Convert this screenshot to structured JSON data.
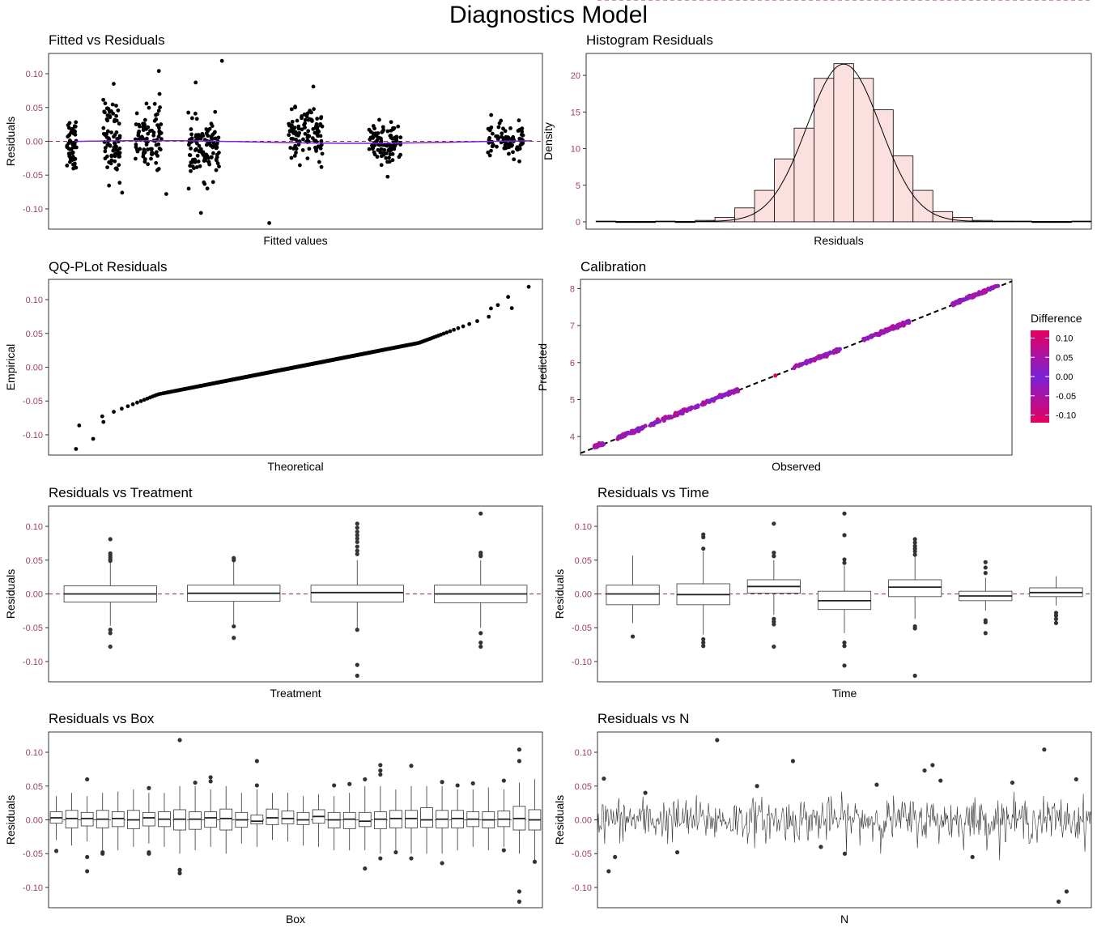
{
  "title": "Diagnostics Model",
  "colors": {
    "tick_label": "#a0405a",
    "ref_line": "#9b2d4d",
    "smooth_line": "#7a22d6",
    "hist_fill": "#fbe0df",
    "legend_low": "#e6005e",
    "legend_mid": "#7a22d6"
  },
  "chart_data": [
    {
      "id": "fitted",
      "type": "scatter",
      "title": "Fitted vs Residuals",
      "xlabel": "Fitted values",
      "ylabel": "Residuals",
      "xlim": [
        3.5,
        8.2
      ],
      "ylim": [
        -0.13,
        0.13
      ],
      "yticks": [
        "-0.10",
        "-0.05",
        "0.00",
        "0.05",
        "0.10"
      ],
      "ytick_values": [
        -0.1,
        -0.05,
        0,
        0.05,
        0.1
      ],
      "hline": 0,
      "clusters": [
        {
          "center": 3.72,
          "width": 0.09,
          "n": 50,
          "mean": 0.0,
          "sd": 0.022
        },
        {
          "center": 4.1,
          "width": 0.16,
          "n": 80,
          "mean": 0.002,
          "sd": 0.028
        },
        {
          "center": 4.45,
          "width": 0.25,
          "n": 90,
          "mean": 0.008,
          "sd": 0.022
        },
        {
          "center": 4.98,
          "width": 0.3,
          "n": 110,
          "mean": -0.012,
          "sd": 0.02
        },
        {
          "center": 5.95,
          "width": 0.33,
          "n": 110,
          "mean": 0.008,
          "sd": 0.018
        },
        {
          "center": 6.7,
          "width": 0.3,
          "n": 100,
          "mean": -0.004,
          "sd": 0.017
        },
        {
          "center": 7.85,
          "width": 0.35,
          "n": 80,
          "mean": 0.002,
          "sd": 0.012
        }
      ],
      "outliers": [
        {
          "x": 4.55,
          "y": 0.104
        },
        {
          "x": 5.15,
          "y": 0.119
        },
        {
          "x": 4.9,
          "y": 0.087
        },
        {
          "x": 4.12,
          "y": 0.085
        },
        {
          "x": 6.02,
          "y": 0.081
        },
        {
          "x": 5.6,
          "y": -0.121
        },
        {
          "x": 4.95,
          "y": -0.106
        },
        {
          "x": 4.62,
          "y": -0.078
        },
        {
          "x": 4.2,
          "y": -0.076
        }
      ]
    },
    {
      "id": "hist",
      "type": "histogram",
      "title": "Histogram Residuals",
      "xlabel": "Residuals",
      "ylabel": "Density",
      "xlim": [
        -0.13,
        0.125
      ],
      "ylim": [
        -1,
        23
      ],
      "yticks": [
        "0",
        "5",
        "10",
        "15",
        "20"
      ],
      "ytick_values": [
        0,
        5,
        10,
        15,
        20
      ],
      "bin_edges": [
        -0.125,
        -0.115,
        -0.105,
        -0.095,
        -0.085,
        -0.075,
        -0.065,
        -0.055,
        -0.045,
        -0.035,
        -0.025,
        -0.015,
        -0.005,
        0.005,
        0.015,
        0.025,
        0.035,
        0.045,
        0.055,
        0.065,
        0.075,
        0.085,
        0.095,
        0.105,
        0.115,
        0.125
      ],
      "densities": [
        0.1,
        0.0,
        0.0,
        0.1,
        0.0,
        0.2,
        0.6,
        1.9,
        4.3,
        8.6,
        12.8,
        19.6,
        21.6,
        19.6,
        15.3,
        9.0,
        4.3,
        1.4,
        0.6,
        0.2,
        0.1,
        0.1,
        0.0,
        0.0,
        0.1
      ]
    },
    {
      "id": "qq",
      "type": "scatter",
      "title": "QQ-PLot Residuals",
      "xlabel": "Theoretical",
      "ylabel": "Empirical",
      "xlim": [
        -3.6,
        3.6
      ],
      "ylim": [
        -0.13,
        0.13
      ],
      "yticks": [
        "-0.10",
        "-0.05",
        "0.00",
        "0.05",
        "0.10"
      ],
      "ytick_values": [
        -0.1,
        -0.05,
        0,
        0.05,
        0.1
      ],
      "n": 620,
      "sd": 0.02
    },
    {
      "id": "calibration",
      "type": "scatter",
      "title": "Calibration",
      "xlabel": "Observed",
      "ylabel": "Predicted",
      "xlim": [
        3.55,
        8.2
      ],
      "ylim": [
        3.5,
        8.25
      ],
      "yticks": [
        "4",
        "5",
        "6",
        "7",
        "8"
      ],
      "ytick_values": [
        4,
        5,
        6,
        7,
        8
      ],
      "diagonal": true,
      "legend": {
        "title": "Difference",
        "labels": [
          "0.10",
          "0.05",
          "0.00",
          "-0.05",
          "-0.10"
        ],
        "values": [
          0.1,
          0.05,
          0,
          -0.05,
          -0.1
        ]
      },
      "segments": [
        {
          "from": 3.7,
          "to": 3.8,
          "n": 30
        },
        {
          "from": 3.95,
          "to": 4.25,
          "n": 60
        },
        {
          "from": 4.3,
          "to": 4.75,
          "n": 70
        },
        {
          "from": 4.75,
          "to": 5.25,
          "n": 80
        },
        {
          "from": 5.85,
          "to": 6.35,
          "n": 80
        },
        {
          "from": 6.6,
          "to": 7.1,
          "n": 80
        },
        {
          "from": 7.55,
          "to": 8.05,
          "n": 80
        }
      ]
    },
    {
      "id": "treatment",
      "type": "box",
      "title": "Residuals vs Treatment",
      "xlabel": "Treatment",
      "ylabel": "Residuals",
      "ylim": [
        -0.13,
        0.13
      ],
      "yticks": [
        "-0.10",
        "-0.05",
        "0.00",
        "0.05",
        "0.10"
      ],
      "ytick_values": [
        -0.1,
        -0.05,
        0,
        0.05,
        0.1
      ],
      "hline": 0,
      "boxes": [
        {
          "q1": -0.012,
          "med": 0.0,
          "q3": 0.012,
          "lo": -0.047,
          "hi": 0.047,
          "out": [
            0.081,
            0.06,
            0.057,
            0.054,
            0.051,
            0.049,
            -0.053,
            -0.058,
            -0.078
          ]
        },
        {
          "q1": -0.011,
          "med": 0.001,
          "q3": 0.013,
          "lo": -0.045,
          "hi": 0.05,
          "out": [
            0.053,
            0.05,
            -0.048,
            -0.065
          ]
        },
        {
          "q1": -0.012,
          "med": 0.002,
          "q3": 0.013,
          "lo": -0.05,
          "hi": 0.05,
          "out": [
            0.104,
            0.098,
            0.092,
            0.087,
            0.082,
            0.077,
            0.07,
            0.064,
            0.059,
            -0.053,
            -0.105,
            -0.121
          ]
        },
        {
          "q1": -0.013,
          "med": 0.0,
          "q3": 0.013,
          "lo": -0.05,
          "hi": 0.05,
          "out": [
            0.119,
            0.061,
            0.058,
            0.056,
            -0.058,
            -0.072,
            -0.078
          ]
        }
      ]
    },
    {
      "id": "time",
      "type": "box",
      "title": "Residuals vs Time",
      "xlabel": "Time",
      "ylabel": "Residuals",
      "ylim": [
        -0.13,
        0.13
      ],
      "yticks": [
        "-0.10",
        "-0.05",
        "0.00",
        "0.05",
        "0.10"
      ],
      "ytick_values": [
        -0.1,
        -0.05,
        0,
        0.05,
        0.1
      ],
      "hline": 0,
      "boxes": [
        {
          "q1": -0.016,
          "med": 0.0,
          "q3": 0.013,
          "lo": -0.043,
          "hi": 0.057,
          "out": [
            -0.063
          ]
        },
        {
          "q1": -0.016,
          "med": -0.001,
          "q3": 0.015,
          "lo": -0.06,
          "hi": 0.063,
          "out": [
            0.088,
            0.084,
            0.067,
            -0.067,
            -0.072,
            -0.077
          ]
        },
        {
          "q1": 0.001,
          "med": 0.011,
          "q3": 0.021,
          "lo": -0.031,
          "hi": 0.05,
          "out": [
            0.104,
            0.061,
            0.056,
            -0.037,
            -0.041,
            -0.045,
            -0.078
          ]
        },
        {
          "q1": -0.023,
          "med": -0.01,
          "q3": 0.004,
          "lo": -0.058,
          "hi": 0.042,
          "out": [
            0.119,
            0.087,
            0.051,
            0.046,
            -0.072,
            -0.077,
            -0.106
          ]
        },
        {
          "q1": -0.004,
          "med": 0.01,
          "q3": 0.021,
          "lo": -0.037,
          "hi": 0.057,
          "out": [
            0.081,
            0.076,
            0.071,
            0.067,
            0.063,
            0.058,
            -0.048,
            -0.051,
            -0.121
          ]
        },
        {
          "q1": -0.01,
          "med": -0.003,
          "q3": 0.004,
          "lo": -0.025,
          "hi": 0.024,
          "out": [
            0.047,
            0.039,
            0.031,
            -0.039,
            -0.042,
            -0.058
          ]
        },
        {
          "q1": -0.004,
          "med": 0.002,
          "q3": 0.009,
          "lo": -0.017,
          "hi": 0.026,
          "out": [
            -0.028,
            -0.032,
            -0.037,
            -0.043
          ]
        }
      ]
    },
    {
      "id": "box",
      "type": "box",
      "title": "Residuals vs Box",
      "xlabel": "Box",
      "ylabel": "Residuals",
      "ylim": [
        -0.13,
        0.13
      ],
      "yticks": [
        "-0.10",
        "-0.05",
        "0.00",
        "0.05",
        "0.10"
      ],
      "ytick_values": [
        -0.1,
        -0.05,
        0,
        0.05,
        0.1
      ],
      "hline": 0,
      "boxes": [
        {
          "q1": -0.005,
          "med": 0.003,
          "q3": 0.012,
          "lo": -0.03,
          "hi": 0.035,
          "out": [
            -0.046
          ]
        },
        {
          "q1": -0.012,
          "med": 0.002,
          "q3": 0.014,
          "lo": -0.038,
          "hi": 0.04,
          "out": []
        },
        {
          "q1": -0.009,
          "med": 0.002,
          "q3": 0.011,
          "lo": -0.032,
          "hi": 0.035,
          "out": [
            0.06,
            -0.055,
            -0.076
          ]
        },
        {
          "q1": -0.012,
          "med": 0.001,
          "q3": 0.014,
          "lo": -0.045,
          "hi": 0.04,
          "out": [
            -0.048,
            -0.05
          ]
        },
        {
          "q1": -0.01,
          "med": 0.002,
          "q3": 0.012,
          "lo": -0.045,
          "hi": 0.042,
          "out": []
        },
        {
          "q1": -0.013,
          "med": 0.0,
          "q3": 0.014,
          "lo": -0.04,
          "hi": 0.045,
          "out": []
        },
        {
          "q1": -0.009,
          "med": 0.003,
          "q3": 0.011,
          "lo": -0.035,
          "hi": 0.04,
          "out": [
            0.047,
            -0.048,
            -0.05
          ]
        },
        {
          "q1": -0.01,
          "med": 0.001,
          "q3": 0.012,
          "lo": -0.04,
          "hi": 0.04,
          "out": []
        },
        {
          "q1": -0.015,
          "med": 0.001,
          "q3": 0.015,
          "lo": -0.05,
          "hi": 0.05,
          "out": [
            0.118,
            -0.074,
            -0.079
          ]
        },
        {
          "q1": -0.014,
          "med": 0.001,
          "q3": 0.012,
          "lo": -0.045,
          "hi": 0.05,
          "out": [
            0.055
          ]
        },
        {
          "q1": -0.011,
          "med": 0.003,
          "q3": 0.012,
          "lo": -0.04,
          "hi": 0.045,
          "out": [
            0.063,
            0.057
          ]
        },
        {
          "q1": -0.015,
          "med": 0.002,
          "q3": 0.016,
          "lo": -0.05,
          "hi": 0.05,
          "out": []
        },
        {
          "q1": -0.011,
          "med": 0.0,
          "q3": 0.011,
          "lo": -0.035,
          "hi": 0.04,
          "out": []
        },
        {
          "q1": -0.006,
          "med": -0.002,
          "q3": 0.007,
          "lo": -0.04,
          "hi": 0.045,
          "out": [
            0.087,
            0.051
          ]
        },
        {
          "q1": -0.007,
          "med": 0.003,
          "q3": 0.016,
          "lo": -0.03,
          "hi": 0.04,
          "out": []
        },
        {
          "q1": -0.006,
          "med": 0.002,
          "q3": 0.013,
          "lo": -0.032,
          "hi": 0.04,
          "out": []
        },
        {
          "q1": -0.007,
          "med": 0.0,
          "q3": 0.011,
          "lo": -0.038,
          "hi": 0.035,
          "out": []
        },
        {
          "q1": -0.005,
          "med": 0.005,
          "q3": 0.015,
          "lo": -0.04,
          "hi": 0.038,
          "out": []
        },
        {
          "q1": -0.012,
          "med": 0.0,
          "q3": 0.011,
          "lo": -0.045,
          "hi": 0.035,
          "out": [
            0.051
          ]
        },
        {
          "q1": -0.013,
          "med": 0.001,
          "q3": 0.011,
          "lo": -0.045,
          "hi": 0.04,
          "out": [
            0.053
          ]
        },
        {
          "q1": -0.01,
          "med": -0.002,
          "q3": 0.011,
          "lo": -0.045,
          "hi": 0.05,
          "out": [
            0.06,
            -0.072
          ]
        },
        {
          "q1": -0.013,
          "med": 0.001,
          "q3": 0.012,
          "lo": -0.05,
          "hi": 0.05,
          "out": [
            0.081,
            0.073,
            0.067,
            -0.057
          ]
        },
        {
          "q1": -0.012,
          "med": 0.002,
          "q3": 0.014,
          "lo": -0.045,
          "hi": 0.045,
          "out": [
            -0.048
          ]
        },
        {
          "q1": -0.012,
          "med": 0.002,
          "q3": 0.014,
          "lo": -0.05,
          "hi": 0.05,
          "out": [
            0.08,
            -0.057
          ]
        },
        {
          "q1": -0.011,
          "med": 0.0,
          "q3": 0.018,
          "lo": -0.05,
          "hi": 0.05,
          "out": []
        },
        {
          "q1": -0.012,
          "med": 0.001,
          "q3": 0.014,
          "lo": -0.05,
          "hi": 0.05,
          "out": [
            0.056,
            -0.064
          ]
        },
        {
          "q1": -0.012,
          "med": 0.002,
          "q3": 0.014,
          "lo": -0.045,
          "hi": 0.045,
          "out": [
            0.051
          ]
        },
        {
          "q1": -0.01,
          "med": 0.001,
          "q3": 0.012,
          "lo": -0.04,
          "hi": 0.045,
          "out": [
            0.054
          ]
        },
        {
          "q1": -0.012,
          "med": 0.0,
          "q3": 0.012,
          "lo": -0.045,
          "hi": 0.048,
          "out": []
        },
        {
          "q1": -0.01,
          "med": 0.001,
          "q3": 0.013,
          "lo": -0.04,
          "hi": 0.045,
          "out": [
            0.058,
            -0.045
          ]
        },
        {
          "q1": -0.015,
          "med": 0.002,
          "q3": 0.02,
          "lo": -0.05,
          "hi": 0.055,
          "out": [
            0.104,
            0.087,
            -0.106,
            -0.121
          ]
        },
        {
          "q1": -0.015,
          "med": 0.0,
          "q3": 0.015,
          "lo": -0.06,
          "hi": 0.06,
          "out": [
            -0.062
          ]
        }
      ]
    },
    {
      "id": "n",
      "type": "line",
      "title": "Residuals vs N",
      "xlabel": "N",
      "ylabel": "Residuals",
      "ylim": [
        -0.13,
        0.13
      ],
      "yticks": [
        "-0.10",
        "-0.05",
        "0.00",
        "0.05",
        "0.10"
      ],
      "ytick_values": [
        -0.1,
        -0.05,
        0,
        0.05,
        0.1
      ],
      "n": 620,
      "sd": 0.016,
      "outliers": [
        {
          "i": 8,
          "y": 0.061
        },
        {
          "i": 14,
          "y": -0.076
        },
        {
          "i": 22,
          "y": -0.055
        },
        {
          "i": 150,
          "y": 0.118
        },
        {
          "i": 245,
          "y": 0.087
        },
        {
          "i": 560,
          "y": 0.104
        },
        {
          "i": 588,
          "y": -0.106
        },
        {
          "i": 578,
          "y": -0.121
        },
        {
          "i": 420,
          "y": 0.081
        },
        {
          "i": 410,
          "y": 0.073
        },
        {
          "i": 430,
          "y": 0.058
        },
        {
          "i": 600,
          "y": 0.06
        },
        {
          "i": 100,
          "y": -0.048
        },
        {
          "i": 200,
          "y": 0.05
        },
        {
          "i": 310,
          "y": -0.05
        },
        {
          "i": 350,
          "y": 0.052
        },
        {
          "i": 470,
          "y": -0.055
        },
        {
          "i": 520,
          "y": 0.055
        },
        {
          "i": 60,
          "y": 0.04
        },
        {
          "i": 280,
          "y": -0.04
        }
      ]
    }
  ]
}
